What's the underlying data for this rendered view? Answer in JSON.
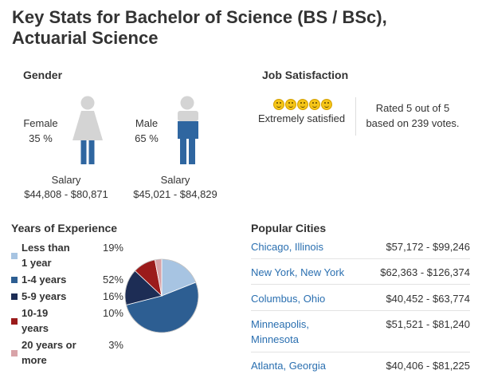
{
  "title": "Key Stats for Bachelor of Science (BS / BSc), Actuarial Science",
  "gender": {
    "heading": "Gender",
    "female": {
      "label": "Female",
      "percent": "35 %",
      "salary_label": "Salary",
      "salary_range": "$44,808 - $80,871"
    },
    "male": {
      "label": "Male",
      "percent": "65 %",
      "salary_label": "Salary",
      "salary_range": "$45,021 - $84,829"
    },
    "colors": {
      "body": "#d4d4d4",
      "legs": "#2f66a0"
    }
  },
  "job_satisfaction": {
    "heading": "Job Satisfaction",
    "rating_icons": [
      "smiley-icon",
      "smiley-icon",
      "smiley-icon",
      "smiley-icon",
      "smiley-icon"
    ],
    "rating_text": "Extremely satisfied",
    "rated_line1": "Rated 5 out of 5",
    "rated_line2": "based on 239 votes."
  },
  "years_of_experience": {
    "heading": "Years of Experience",
    "items": [
      {
        "label_line1": "Less than",
        "label_line2": "1 year",
        "percent": "19%",
        "color": "#a7c4e2"
      },
      {
        "label_line1": "1-4 years",
        "label_line2": "",
        "percent": "52%",
        "color": "#2d5e92"
      },
      {
        "label_line1": "5-9 years",
        "label_line2": "",
        "percent": "16%",
        "color": "#1d2d55"
      },
      {
        "label_line1": "10-19",
        "label_line2": "years",
        "percent": "10%",
        "color": "#9b1b1b"
      },
      {
        "label_line1": "20 years or",
        "label_line2": "more",
        "percent": "3%",
        "color": "#d8a3a8"
      }
    ]
  },
  "chart_data": {
    "type": "pie",
    "categories": [
      "Less than 1 year",
      "1-4 years",
      "5-9 years",
      "10-19 years",
      "20 years or more"
    ],
    "values": [
      19,
      52,
      16,
      10,
      3
    ],
    "colors": [
      "#a7c4e2",
      "#2d5e92",
      "#1d2d55",
      "#9b1b1b",
      "#d8a3a8"
    ]
  },
  "popular_cities": {
    "heading": "Popular Cities",
    "items": [
      {
        "name_line1": "Chicago, Illinois",
        "name_line2": "",
        "salary": "$57,172 - $99,246"
      },
      {
        "name_line1": "New York, New York",
        "name_line2": "",
        "salary": "$62,363 - $126,374"
      },
      {
        "name_line1": "Columbus, Ohio",
        "name_line2": "",
        "salary": "$40,452 - $63,774"
      },
      {
        "name_line1": "Minneapolis,",
        "name_line2": "Minnesota",
        "salary": "$51,521 - $81,240"
      },
      {
        "name_line1": "Atlanta, Georgia",
        "name_line2": "",
        "salary": "$40,406 - $81,225"
      }
    ]
  }
}
